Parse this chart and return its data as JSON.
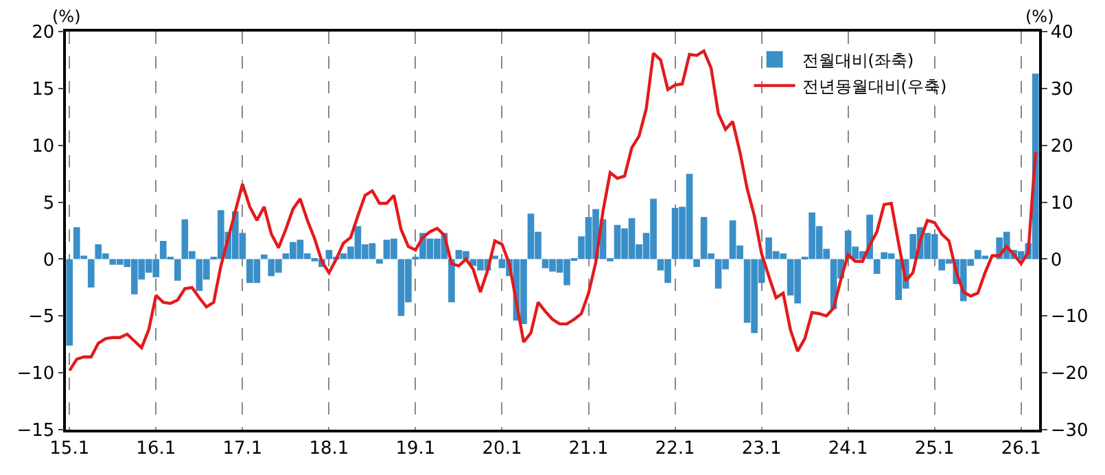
{
  "chart_data": {
    "type": "bar",
    "categories": [
      "15.1",
      null,
      null,
      null,
      null,
      null,
      null,
      null,
      null,
      null,
      null,
      null,
      "16.1",
      null,
      null,
      null,
      null,
      null,
      null,
      null,
      null,
      null,
      null,
      null,
      "17.1",
      null,
      null,
      null,
      null,
      null,
      null,
      null,
      null,
      null,
      null,
      null,
      "18.1",
      null,
      null,
      null,
      null,
      null,
      null,
      null,
      null,
      null,
      null,
      null,
      "19.1",
      null,
      null,
      null,
      null,
      null,
      null,
      null,
      null,
      null,
      null,
      null,
      "20.1",
      null,
      null,
      null,
      null,
      null,
      null,
      null,
      null,
      null,
      null,
      null,
      "21.1",
      null,
      null,
      null,
      null,
      null,
      null,
      null,
      null,
      null,
      null,
      null,
      "22.1",
      null,
      null,
      null,
      null,
      null,
      null,
      null,
      null,
      null,
      null,
      null,
      "23.1",
      null,
      null,
      null,
      null,
      null,
      null,
      null,
      null,
      null,
      null,
      null,
      "24.1",
      null,
      null,
      null,
      null,
      null,
      null,
      null,
      null,
      null,
      null,
      null,
      "25.1",
      null,
      null,
      null,
      null,
      null,
      null,
      null,
      null,
      null,
      null,
      null,
      "26.1",
      null,
      null
    ],
    "series": [
      {
        "name": "전월대비(좌축)",
        "color": "#3a8fc8",
        "values": [
          -7.6,
          2.8,
          0.3,
          -2.5,
          1.3,
          0.5,
          -0.5,
          -0.5,
          -0.7,
          -3.1,
          -1.8,
          -1.2,
          -1.6,
          1.6,
          0.1,
          -1.9,
          3.5,
          0.7,
          -2.8,
          -1.8,
          0.2,
          4.3,
          2.4,
          4.2,
          2.3,
          -2.1,
          -2.1,
          0.4,
          -1.5,
          -1.2,
          0.5,
          1.5,
          1.7,
          0.5,
          -0.2,
          -0.7,
          0.8,
          0.2,
          0.5,
          1.1,
          2.9,
          1.3,
          1.4,
          -0.4,
          1.7,
          1.8,
          -5.0,
          -3.8,
          0.1,
          2.3,
          1.8,
          1.8,
          2.3,
          -3.8,
          0.8,
          0.7,
          -0.6,
          -1.0,
          -1.0,
          0.3,
          -0.8,
          -1.5,
          -5.4,
          -5.7,
          4.0,
          2.4,
          -0.8,
          -1.1,
          -1.2,
          -2.3,
          -0.1,
          2.0,
          3.7,
          4.4,
          3.5,
          -0.2,
          3.0,
          2.7,
          3.6,
          1.3,
          2.3,
          5.3,
          -1.0,
          -2.1,
          4.5,
          4.6,
          7.5,
          -0.7,
          3.7,
          0.5,
          -2.6,
          -0.9,
          3.4,
          1.2,
          -5.6,
          -6.5,
          -2.1,
          1.9,
          0.7,
          0.5,
          -3.2,
          -3.9,
          0.2,
          4.1,
          2.9,
          0.9,
          -4.4,
          -1.7,
          2.5,
          1.1,
          0.7,
          3.9,
          -1.3,
          0.6,
          0.5,
          -3.6,
          -2.6,
          2.2,
          2.8,
          2.3,
          2.2,
          -1.0,
          -0.4,
          -2.2,
          -3.7,
          -0.6,
          0.8,
          0.3,
          null,
          1.9,
          2.4,
          0.8,
          0.7,
          1.4,
          16.3
        ]
      },
      {
        "name": "전년동월대비(우축)",
        "type": "line",
        "axis": "y2",
        "color": "#e31a1c",
        "values": [
          -19.6,
          -17.6,
          -17.2,
          -17.2,
          -14.8,
          -14.0,
          -13.8,
          -13.8,
          -13.2,
          -14.4,
          -15.6,
          -12.4,
          -6.4,
          -7.6,
          -7.8,
          -7.2,
          -5.2,
          -5.0,
          -6.8,
          -8.4,
          -7.6,
          -1.2,
          3.6,
          8.4,
          13.2,
          9.2,
          6.8,
          9.2,
          4.4,
          2.0,
          5.2,
          8.8,
          10.6,
          6.8,
          3.6,
          -0.4,
          -2.4,
          0,
          2.8,
          3.8,
          7.6,
          11.2,
          12.0,
          9.8,
          9.8,
          11.2,
          5.2,
          2.2,
          1.6,
          3.8,
          4.8,
          5.4,
          4.2,
          -0.8,
          -1.2,
          0,
          -1.8,
          -5.8,
          -2.0,
          3.2,
          2.6,
          -0.8,
          -7.6,
          -14.6,
          -13.0,
          -7.6,
          -9.2,
          -10.6,
          -11.4,
          -11.4,
          -10.6,
          -9.6,
          -6.0,
          -0.6,
          8.4,
          15.2,
          14.2,
          14.6,
          19.6,
          21.6,
          26.4,
          36.2,
          35.0,
          29.8,
          30.6,
          30.8,
          36.0,
          35.8,
          36.6,
          33.6,
          25.6,
          22.8,
          24.2,
          18.8,
          12.4,
          7.6,
          1.0,
          -3.0,
          -6.8,
          -6.0,
          -12.4,
          -16.2,
          -14.0,
          -9.4,
          -9.6,
          -10.0,
          -8.6,
          -3.6,
          0.8,
          -0.4,
          -0.4,
          2.4,
          4.8,
          9.6,
          9.8,
          2.8,
          -3.8,
          -2.4,
          3.2,
          6.8,
          6.4,
          4.4,
          3.2,
          -2.2,
          -5.8,
          -6.5,
          -6.0,
          -2.4,
          0.6,
          0.6,
          2.2,
          0.8,
          -0.8,
          1.2,
          18.8
        ]
      }
    ],
    "ylabel": "(%)",
    "y2label": "(%)",
    "ylim": [
      -15,
      20
    ],
    "yticks": [
      -15,
      -10,
      -5,
      0,
      5,
      10,
      15,
      20
    ],
    "y2lim": [
      -30,
      40
    ],
    "y2ticks": [
      -30,
      -20,
      -10,
      0,
      10,
      20,
      30,
      40
    ],
    "grid": "x",
    "legend": "top right",
    "marker": "none",
    "line_style": "solid"
  }
}
